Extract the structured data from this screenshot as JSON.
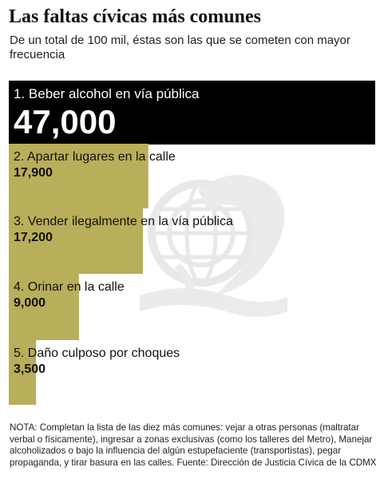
{
  "header": {
    "title": "Las faltas cívicas más comunes",
    "subtitle": "De un total de 100 mil, éstas son las que se cometen con mayor frecuencia"
  },
  "colors": {
    "top_bar": "#000000",
    "bar": "#b9ae59",
    "watermark": "#d8d8d8"
  },
  "icons": {
    "watermark": "eagle-seal-icon"
  },
  "chart_data": {
    "type": "bar",
    "orientation": "horizontal",
    "categories": [
      "1. Beber alcohol en vía pública",
      "2. Apartar lugares en la calle",
      "3. Vender ilegalmente en la vía pública",
      "4. Orinar en la calle",
      "5. Daño culposo por choques"
    ],
    "values": [
      47000,
      17900,
      17200,
      9000,
      3500
    ],
    "value_labels": [
      "47,000",
      "17,900",
      "17,200",
      "9,000",
      "3,500"
    ],
    "xlim": [
      0,
      47000
    ],
    "grid": false,
    "legend": "none"
  },
  "note": "NOTA: Completan la lista de las diez más comunes: vejar a otras personas (maltratar verbal o físicamente), ingresar a zonas exclusivas (como los talleres del Metro), Manejar alcoholizados o bajo la influencia del algún estupefaciente (transportistas), pegar propaganda, y tirar basura en las calles. Fuente: Dirección de Justicia Cívica de la CDMX"
}
